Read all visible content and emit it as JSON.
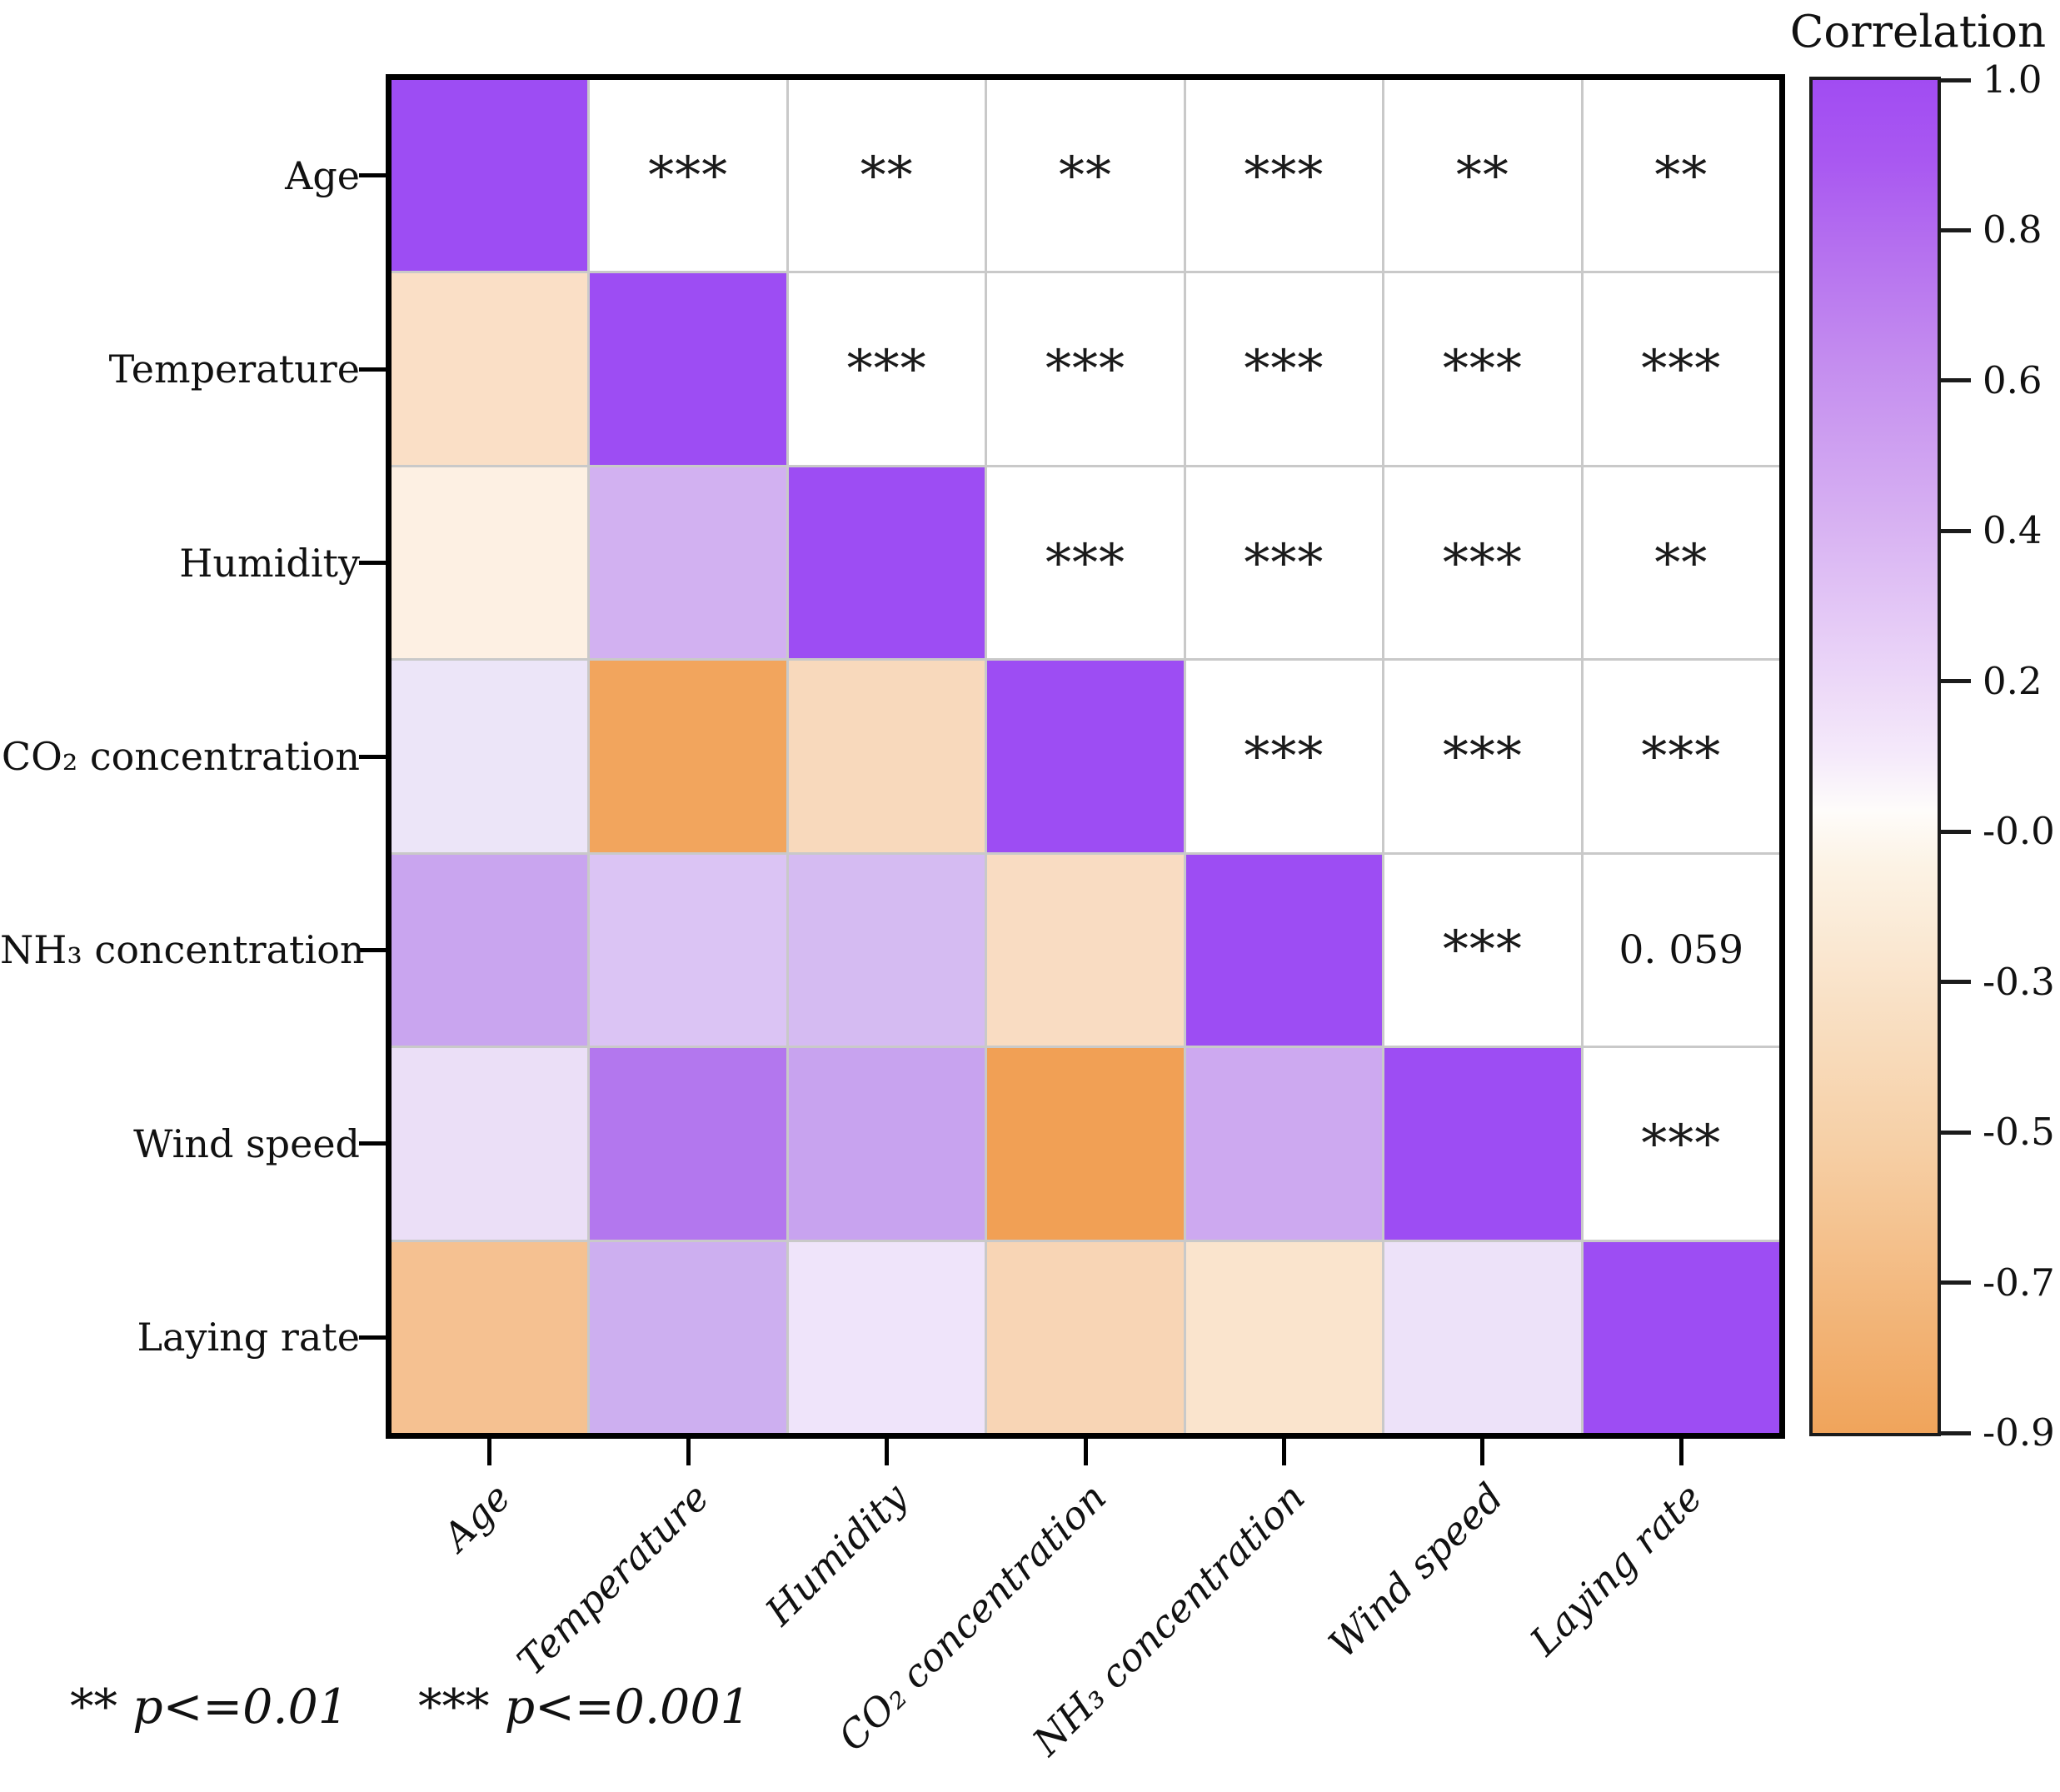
{
  "figure": {
    "background": "#ffffff",
    "footnote": {
      "part1": "** p<=0.01",
      "part2": "*** p<=0.001"
    }
  },
  "chart_data": {
    "type": "heatmap",
    "title": "",
    "colorbar_title": "Correlation",
    "variables": [
      "Age",
      "Temperature",
      "Humidity",
      "CO₂ concentration",
      "NH₃ concentration",
      "Wind speed",
      "Laying rate"
    ],
    "colorbar": {
      "tick_labels": [
        "1.0",
        "0.8",
        "0.6",
        "0.4",
        "0.2",
        "-0.0",
        "-0.3",
        "-0.5",
        "-0.7",
        "-0.9"
      ],
      "value_top": 1.0,
      "value_bottom": -0.9,
      "gradient_stops": [
        {
          "pos": 0,
          "color": "#A14CF2"
        },
        {
          "pos": 6,
          "color": "#A958F1"
        },
        {
          "pos": 12,
          "color": "#B46EEF"
        },
        {
          "pos": 21,
          "color": "#C48DEF"
        },
        {
          "pos": 32,
          "color": "#D6AFF2"
        },
        {
          "pos": 42,
          "color": "#E8D0F7"
        },
        {
          "pos": 50,
          "color": "#F5EAFA"
        },
        {
          "pos": 54,
          "color": "#FEFCFA"
        },
        {
          "pos": 58,
          "color": "#FCF3E5"
        },
        {
          "pos": 68,
          "color": "#F9E1C6"
        },
        {
          "pos": 79,
          "color": "#F6CFA5"
        },
        {
          "pos": 89,
          "color": "#F3BA81"
        },
        {
          "pos": 100,
          "color": "#F0A45B"
        }
      ]
    },
    "diagonal_color": "#9D4DF3",
    "cell_colors": [
      [
        "#9D4DF3",
        null,
        null,
        null,
        null,
        null,
        null
      ],
      [
        "#FADFC6",
        "#9D4DF3",
        null,
        null,
        null,
        null,
        null
      ],
      [
        "#FDF0E3",
        "#D2B1F1",
        "#9D4DF3",
        null,
        null,
        null,
        null
      ],
      [
        "#ECE5F8",
        "#F2A55D",
        "#F8D9BC",
        "#9D4DF3",
        null,
        null,
        null
      ],
      [
        "#C9A5EF",
        "#DBC4F4",
        "#D5BBF2",
        "#F9DCC2",
        "#9D4DF3",
        null,
        null
      ],
      [
        "#EBDFF7",
        "#B377EE",
        "#C8A3EF",
        "#F1A055",
        "#CDA9F0",
        "#9D4DF3",
        null
      ],
      [
        "#F5C191",
        "#CDAFF0",
        "#EFE4FA",
        "#F8D5B5",
        "#FAE4CD",
        "#EDE2F9",
        "#9D4DF3"
      ]
    ],
    "cell_annotations": [
      [
        null,
        "***",
        "**",
        "**",
        "***",
        "**",
        "**"
      ],
      [
        null,
        null,
        "***",
        "***",
        "***",
        "***",
        "***"
      ],
      [
        null,
        null,
        null,
        "***",
        "***",
        "***",
        "**"
      ],
      [
        null,
        null,
        null,
        null,
        "***",
        "***",
        "***"
      ],
      [
        null,
        null,
        null,
        null,
        null,
        "***",
        "0. 059"
      ],
      [
        null,
        null,
        null,
        null,
        null,
        null,
        "***"
      ],
      [
        null,
        null,
        null,
        null,
        null,
        null,
        null
      ]
    ],
    "estimated_correlations": [
      [
        1.0,
        -0.25,
        -0.12,
        0.15,
        0.55,
        0.18,
        -0.6
      ],
      [
        -0.25,
        1.0,
        0.42,
        -0.85,
        0.3,
        0.75,
        0.5
      ],
      [
        -0.12,
        0.42,
        1.0,
        -0.35,
        0.38,
        0.55,
        0.12
      ],
      [
        0.15,
        -0.85,
        -0.35,
        1.0,
        -0.3,
        -0.88,
        -0.4
      ],
      [
        0.55,
        0.3,
        0.38,
        -0.3,
        1.0,
        0.5,
        -0.2
      ],
      [
        0.18,
        0.75,
        0.55,
        -0.88,
        0.5,
        1.0,
        0.15
      ],
      [
        -0.6,
        0.5,
        0.12,
        -0.4,
        -0.2,
        0.15,
        1.0
      ]
    ],
    "legend_note": "** p<=0.01    *** p<=0.001"
  }
}
